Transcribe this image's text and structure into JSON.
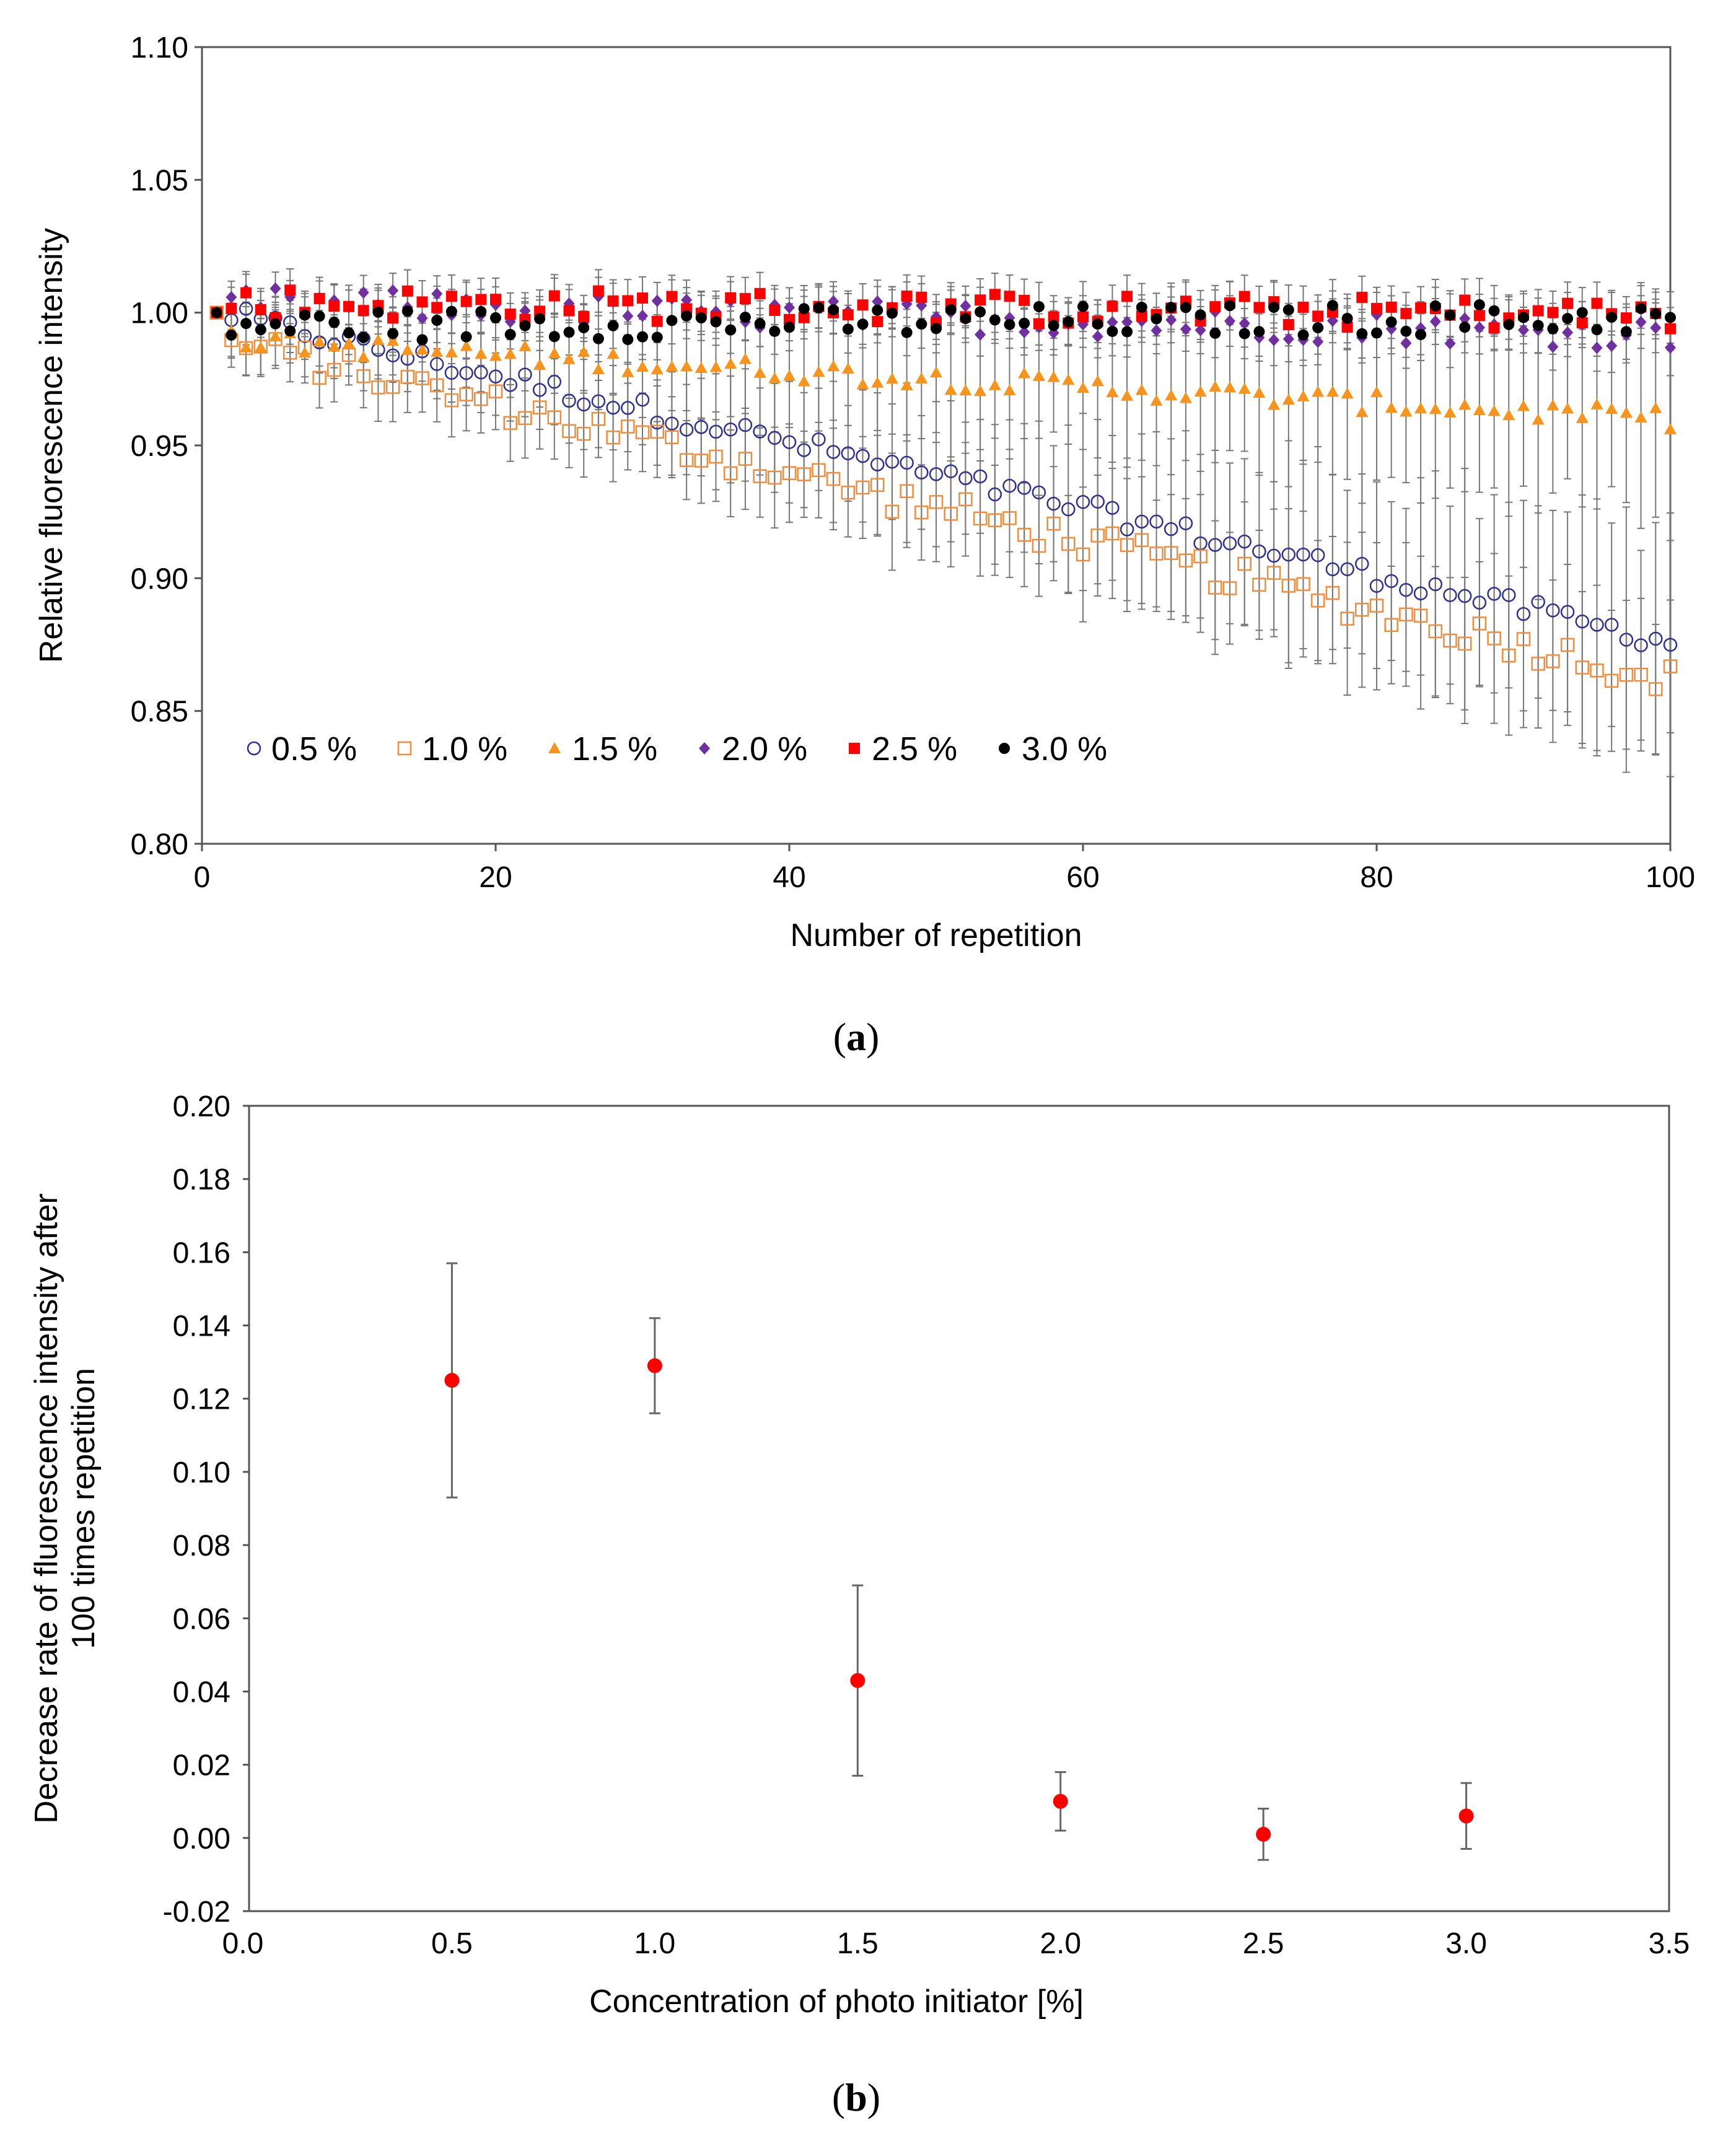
{
  "chart_data": [
    {
      "type": "scatter",
      "panel_label": "a",
      "title": "",
      "xlabel": "Number of repetition",
      "ylabel": "Relative fluorescence intensity",
      "xlim": [
        0,
        100
      ],
      "ylim": [
        0.8,
        1.1
      ],
      "x_ticks": [
        "0",
        "20",
        "40",
        "60",
        "80",
        "100"
      ],
      "y_ticks": [
        "0.80",
        "0.85",
        "0.90",
        "0.95",
        "1.00",
        "1.05",
        "1.10"
      ],
      "grid": false,
      "legend_position": "bottom-left",
      "x": "repetitions 1 to 100",
      "series": [
        {
          "name": "0.5 %",
          "marker": "open-circle",
          "color": "#2E3192",
          "start": 1.0,
          "end": 0.876,
          "noise": 0.004,
          "err_start": 0.006,
          "err_end": 0.045
        },
        {
          "name": "1.0 %",
          "marker": "open-square",
          "color": "#F08C3C",
          "start": 0.99,
          "end": 0.862,
          "noise": 0.006,
          "err_start": 0.01,
          "err_end": 0.03
        },
        {
          "name": "1.5 %",
          "marker": "filled-triangle",
          "color": "#F7941D",
          "start": 0.99,
          "end": 0.96,
          "noise": 0.004,
          "err_start": 0.01,
          "err_end": 0.035
        },
        {
          "name": "2.0 %",
          "marker": "filled-diamond",
          "color": "#7030A0",
          "start": 1.004,
          "end": 0.992,
          "noise": 0.006,
          "err_start": 0.006,
          "err_end": 0.01
        },
        {
          "name": "2.5 %",
          "marker": "filled-square",
          "color": "#FF0000",
          "start": 1.004,
          "end": 0.999,
          "noise": 0.006,
          "err_start": 0.008,
          "err_end": 0.008
        },
        {
          "name": "3.0 %",
          "marker": "filled-circle",
          "color": "#000000",
          "start": 0.995,
          "end": 0.998,
          "noise": 0.006,
          "err_start": 0.008,
          "err_end": 0.01
        }
      ]
    },
    {
      "type": "scatter",
      "panel_label": "b",
      "title": "",
      "xlabel": "Concentration of photo initiator [%]",
      "ylabel_line1": "Decrease rate of fluorescence intensity after",
      "ylabel_line2": "100 times repetition",
      "xlim": [
        0.0,
        3.5
      ],
      "ylim": [
        -0.02,
        0.2
      ],
      "x_ticks": [
        "0.0",
        "0.5",
        "1.0",
        "1.5",
        "2.0",
        "2.5",
        "3.0",
        "3.5"
      ],
      "y_ticks": [
        "-0.02",
        "0.00",
        "0.02",
        "0.04",
        "0.06",
        "0.08",
        "0.10",
        "0.12",
        "0.14",
        "0.16",
        "0.18",
        "0.20"
      ],
      "grid": false,
      "marker_color": "#FF0000",
      "points": [
        {
          "x": 0.5,
          "y": 0.125,
          "err": 0.032
        },
        {
          "x": 1.0,
          "y": 0.129,
          "err": 0.013
        },
        {
          "x": 1.5,
          "y": 0.043,
          "err": 0.026
        },
        {
          "x": 2.0,
          "y": 0.01,
          "err": 0.008
        },
        {
          "x": 2.5,
          "y": 0.001,
          "err": 0.007
        },
        {
          "x": 3.0,
          "y": 0.006,
          "err": 0.009
        }
      ]
    }
  ]
}
